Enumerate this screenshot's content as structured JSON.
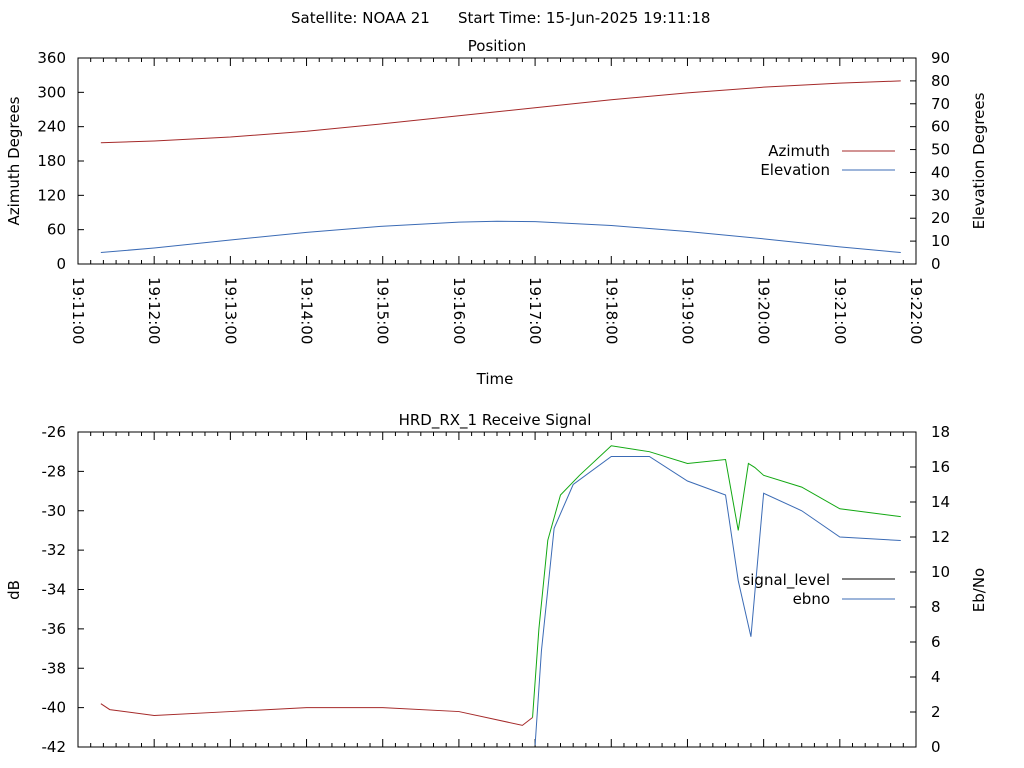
{
  "header": {
    "satellite": "Satellite: NOAA 21",
    "start_time": "Start Time: 15-Jun-2025 19:11:18"
  },
  "colors": {
    "azimuth": "#a52a2a",
    "elevation": "#3b6bb5",
    "signal_pre": "#a52a2a",
    "signal_level": "#12a812",
    "ebno": "#3b6bb5",
    "legend_signal": "#000000"
  },
  "chart_data": [
    {
      "type": "line",
      "title": "Position",
      "xlabel": "Time",
      "ylabel": "Azimuth Degrees",
      "y2label": "Elevation Degrees",
      "x_ticks": [
        "19:11:00",
        "19:12:00",
        "19:13:00",
        "19:14:00",
        "19:15:00",
        "19:16:00",
        "19:17:00",
        "19:18:00",
        "19:19:00",
        "19:20:00",
        "19:21:00",
        "19:22:00"
      ],
      "y_ticks": [
        "0",
        "60",
        "120",
        "180",
        "240",
        "300",
        "360"
      ],
      "y2_ticks": [
        "0",
        "10",
        "20",
        "30",
        "40",
        "50",
        "60",
        "70",
        "80",
        "90"
      ],
      "xlim": [
        "19:11:00",
        "19:22:00"
      ],
      "ylim": [
        0,
        360
      ],
      "y2lim": [
        0,
        90
      ],
      "legend_position": "right",
      "grid": false,
      "series": [
        {
          "name": "Azimuth",
          "axis": "y",
          "x": [
            "19:11:18",
            "19:12:00",
            "19:13:00",
            "19:14:00",
            "19:15:00",
            "19:16:00",
            "19:17:00",
            "19:18:00",
            "19:19:00",
            "19:20:00",
            "19:21:00",
            "19:21:48"
          ],
          "values": [
            212,
            215,
            222,
            232,
            245,
            259,
            273,
            287,
            299,
            309,
            316,
            320
          ]
        },
        {
          "name": "Elevation",
          "axis": "y2",
          "x": [
            "19:11:18",
            "19:12:00",
            "19:13:00",
            "19:14:00",
            "19:15:00",
            "19:16:00",
            "19:16:30",
            "19:17:00",
            "19:18:00",
            "19:19:00",
            "19:20:00",
            "19:21:00",
            "19:21:48"
          ],
          "values": [
            5,
            7,
            10.5,
            13.8,
            16.5,
            18.3,
            18.7,
            18.5,
            16.8,
            14.2,
            11,
            7.5,
            5
          ]
        }
      ]
    },
    {
      "type": "line",
      "title": "HRD_RX_1 Receive Signal",
      "ylabel": "dB",
      "y2label": "Eb/No",
      "y_ticks": [
        "-26",
        "-28",
        "-30",
        "-32",
        "-34",
        "-36",
        "-38",
        "-40",
        "-42"
      ],
      "y2_ticks": [
        "0",
        "2",
        "4",
        "6",
        "8",
        "10",
        "12",
        "14",
        "16",
        "18"
      ],
      "xlim": [
        "19:11:00",
        "19:22:00"
      ],
      "ylim": [
        -42,
        -26
      ],
      "y2lim": [
        0,
        18
      ],
      "legend_position": "right",
      "grid": false,
      "series": [
        {
          "name": "signal_level",
          "axis": "y",
          "x": [
            "19:11:18",
            "19:11:25",
            "19:12:00",
            "19:13:00",
            "19:14:00",
            "19:15:00",
            "19:16:00",
            "19:16:50",
            "19:16:58",
            "19:17:03",
            "19:17:10",
            "19:17:20",
            "19:17:35",
            "19:18:00",
            "19:18:30",
            "19:19:00",
            "19:19:30",
            "19:19:40",
            "19:19:48",
            "19:19:53",
            "19:20:00",
            "19:20:30",
            "19:21:00",
            "19:21:48"
          ],
          "values": [
            -39.8,
            -40.1,
            -40.4,
            -40.2,
            -40.0,
            -40.0,
            -40.2,
            -40.9,
            -40.5,
            -36.0,
            -31.5,
            -29.2,
            -28.2,
            -26.7,
            -27.0,
            -27.6,
            -27.4,
            -31.0,
            -27.6,
            -27.8,
            -28.2,
            -28.8,
            -29.9,
            -30.3
          ]
        },
        {
          "name": "ebno",
          "axis": "y2",
          "x": [
            "19:17:00",
            "19:17:05",
            "19:17:15",
            "19:17:30",
            "19:18:00",
            "19:18:30",
            "19:19:00",
            "19:19:30",
            "19:19:40",
            "19:19:50",
            "19:20:00",
            "19:20:30",
            "19:21:00",
            "19:21:48"
          ],
          "values": [
            0.1,
            5.5,
            12.5,
            15.0,
            16.6,
            16.6,
            15.2,
            14.4,
            9.5,
            6.3,
            14.5,
            13.5,
            12.0,
            11.8
          ]
        }
      ]
    }
  ]
}
